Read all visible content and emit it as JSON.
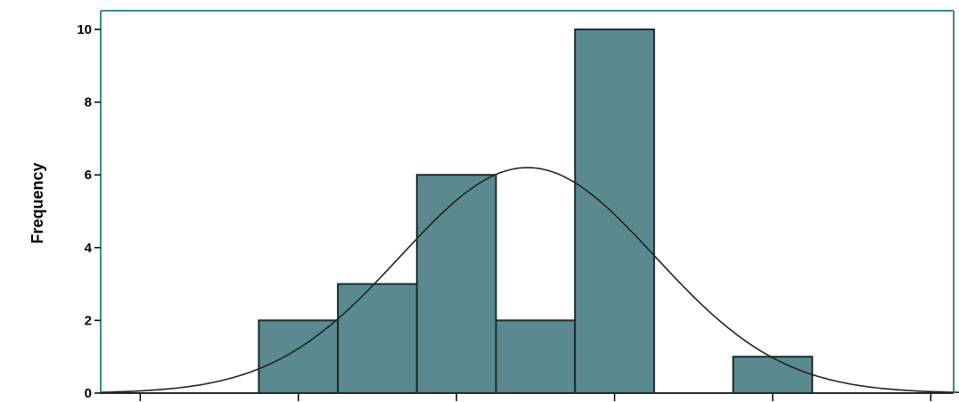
{
  "chart_data": {
    "type": "bar",
    "ylabel": "Frequency",
    "ylim": [
      0,
      10.5
    ],
    "yticks": [
      0,
      2,
      4,
      6,
      8,
      10
    ],
    "bins": [
      {
        "x0": 0,
        "x1": 1,
        "count": 0
      },
      {
        "x0": 1,
        "x1": 2,
        "count": 0
      },
      {
        "x0": 2,
        "x1": 3,
        "count": 2
      },
      {
        "x0": 3,
        "x1": 4,
        "count": 3
      },
      {
        "x0": 4,
        "x1": 5,
        "count": 6
      },
      {
        "x0": 5,
        "x1": 6,
        "count": 2
      },
      {
        "x0": 6,
        "x1": 7,
        "count": 10
      },
      {
        "x0": 7,
        "x1": 8,
        "count": 0
      },
      {
        "x0": 8,
        "x1": 9,
        "count": 1
      },
      {
        "x0": 9,
        "x1": 10,
        "count": 0
      },
      {
        "x0": 10,
        "x1": 11,
        "count": 0
      }
    ],
    "xlim": [
      0,
      11
    ],
    "normal_curve": {
      "mean": 5.4,
      "sd": 1.61,
      "peak": 6.2
    },
    "colors": {
      "bar_fill": "#5a8a8f",
      "bar_stroke": "#1e2a2c",
      "axis": "#3a8a94",
      "curve": "#222222"
    }
  }
}
